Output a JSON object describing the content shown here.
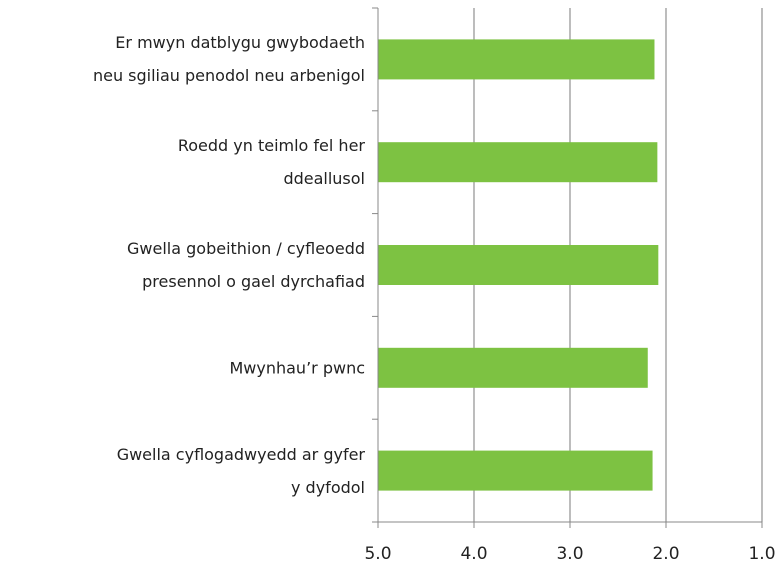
{
  "chart_data": {
    "type": "barh",
    "categories": [
      "Er mwyn datblygu gwybodaeth\nneu sgiliau penodol neu arbenigol",
      "Roedd yn teimlo fel her\nddeallusol",
      "Gwella gobeithion / cyfleoedd\npresennol o gael dyrchafiad",
      "Mwynhau’r pwnc",
      "Gwella cyflogadwyedd ar gyfer\ny dyfodol"
    ],
    "values": [
      2.12,
      2.09,
      2.08,
      2.19,
      2.14
    ],
    "color": "#7dc242",
    "xlim": [
      5,
      1
    ],
    "xticks": [
      {
        "value": 5,
        "label": "5.0"
      },
      {
        "value": 4,
        "label": "4.0"
      },
      {
        "value": 3,
        "label": "3.0"
      },
      {
        "value": 2,
        "label": "2.0"
      },
      {
        "value": 1,
        "label": "1.0"
      }
    ],
    "grid": true
  }
}
